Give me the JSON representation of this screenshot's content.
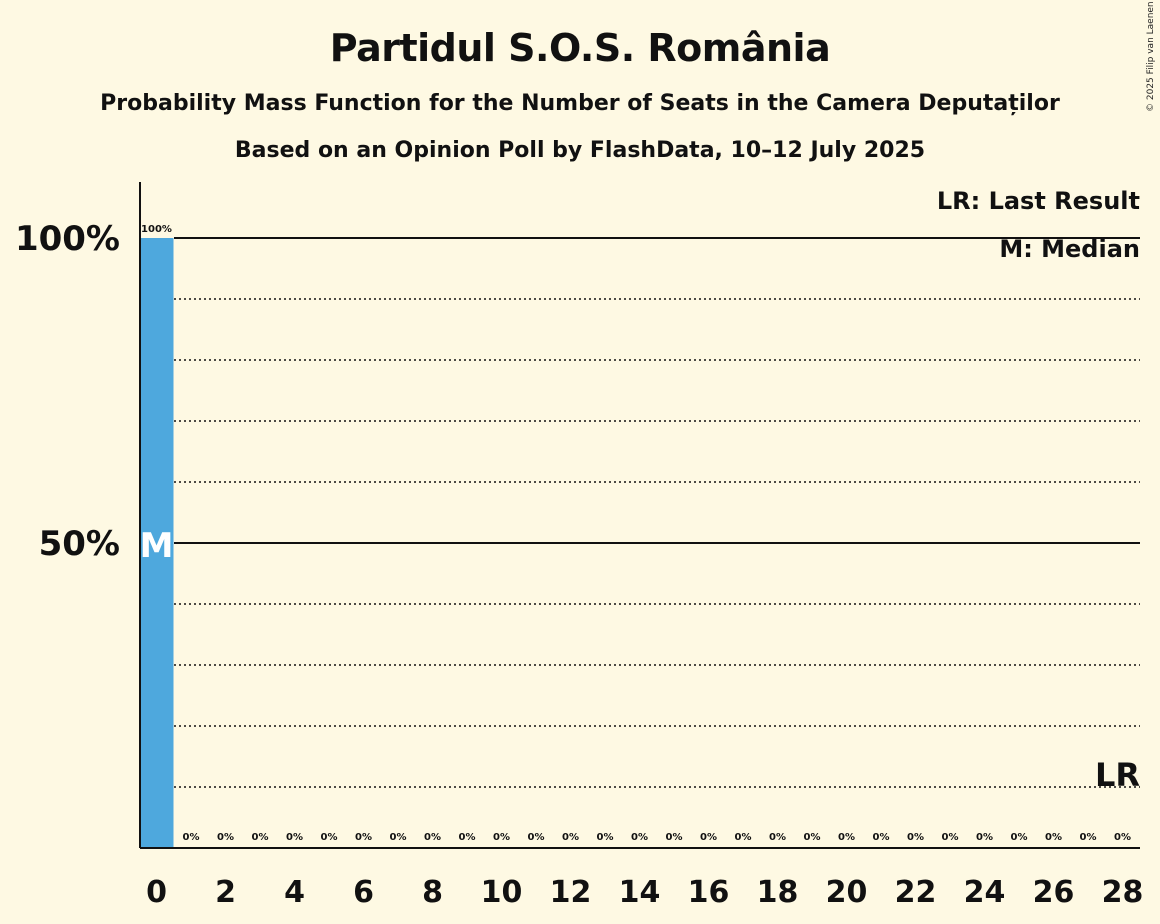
{
  "header": {
    "title": "Partidul S.O.S. România",
    "subtitle": "Probability Mass Function for the Number of Seats in the Camera Deputaților",
    "subtitle2": "Based on an Opinion Poll by FlashData, 10–12 July 2025",
    "copyright": "© 2025 Filip van Laenen"
  },
  "colors": {
    "background": "#fef9e3",
    "bar": "#4ea8dd",
    "text": "#111111"
  },
  "chart_data": {
    "type": "bar",
    "title": "Partidul S.O.S. România",
    "categories": [
      0,
      1,
      2,
      3,
      4,
      5,
      6,
      7,
      8,
      9,
      10,
      11,
      12,
      13,
      14,
      15,
      16,
      17,
      18,
      19,
      20,
      21,
      22,
      23,
      24,
      25,
      26,
      27,
      28
    ],
    "values": [
      100,
      0,
      0,
      0,
      0,
      0,
      0,
      0,
      0,
      0,
      0,
      0,
      0,
      0,
      0,
      0,
      0,
      0,
      0,
      0,
      0,
      0,
      0,
      0,
      0,
      0,
      0,
      0,
      0
    ],
    "value_labels": [
      "100%",
      "0%",
      "0%",
      "0%",
      "0%",
      "0%",
      "0%",
      "0%",
      "0%",
      "0%",
      "0%",
      "0%",
      "0%",
      "0%",
      "0%",
      "0%",
      "0%",
      "0%",
      "0%",
      "0%",
      "0%",
      "0%",
      "0%",
      "0%",
      "0%",
      "0%",
      "0%",
      "0%",
      "0%"
    ],
    "x_tick_labels": [
      "0",
      "2",
      "4",
      "6",
      "8",
      "10",
      "12",
      "14",
      "16",
      "18",
      "20",
      "22",
      "24",
      "26",
      "28"
    ],
    "x_tick_values": [
      0,
      2,
      4,
      6,
      8,
      10,
      12,
      14,
      16,
      18,
      20,
      22,
      24,
      26,
      28
    ],
    "y_tick_labels": [
      "50%",
      "100%"
    ],
    "y_tick_values": [
      50,
      100
    ],
    "ylim": [
      0,
      110
    ],
    "gridlines_dotted": [
      10,
      20,
      30,
      40,
      60,
      70,
      80,
      90
    ],
    "gridlines_solid": [
      50,
      100
    ],
    "median_seat": 0,
    "median_marker": "M",
    "last_result_seat": 28,
    "last_result_marker": "LR",
    "legend": [
      "LR: Last Result",
      "M: Median"
    ],
    "legend_position": "top-right"
  }
}
